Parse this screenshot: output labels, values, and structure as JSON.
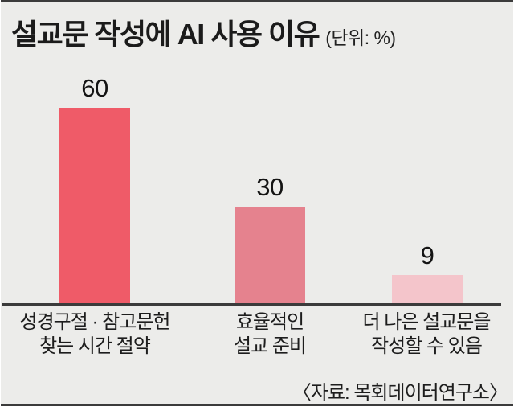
{
  "title": {
    "text": "설교문 작성에 AI 사용 이유",
    "unit": "(단위: %)"
  },
  "source": "〈자료: 목회데이터연구소〉",
  "chart_data": {
    "type": "bar",
    "title": "설교문 작성에 AI 사용 이유",
    "unit_label": "(단위: %)",
    "categories": [
      "성경구절 · 참고문헌 찾는 시간 절약",
      "효율적인 설교 준비",
      "더 나은 설교문을 작성할 수 있음"
    ],
    "values": [
      60,
      30,
      9
    ],
    "value_labels": [
      "60",
      "30",
      "9"
    ],
    "bar_colors": [
      "#ef5b68",
      "#e5828e",
      "#f4c5cb"
    ],
    "xlabel": "",
    "ylabel": "",
    "ylim": [
      0,
      65
    ],
    "grid": false,
    "legend": "none",
    "source": "〈자료: 목회데이터연구소〉"
  },
  "bars": [
    {
      "value": "60",
      "label_line1": "성경구절 · 참고문헌",
      "label_line2": "찾는 시간 절약"
    },
    {
      "value": "30",
      "label_line1": "효율적인",
      "label_line2": "설교 준비"
    },
    {
      "value": "9",
      "label_line1": "더 나은 설교문을",
      "label_line2": "작성할 수 있음"
    }
  ],
  "colors": {
    "background": "#ececea",
    "frame_line": "#3b3b3b",
    "text": "#1b1b1b",
    "bar_high": "#ef5b68",
    "bar_mid": "#e5828e",
    "bar_low": "#f4c5cb"
  }
}
